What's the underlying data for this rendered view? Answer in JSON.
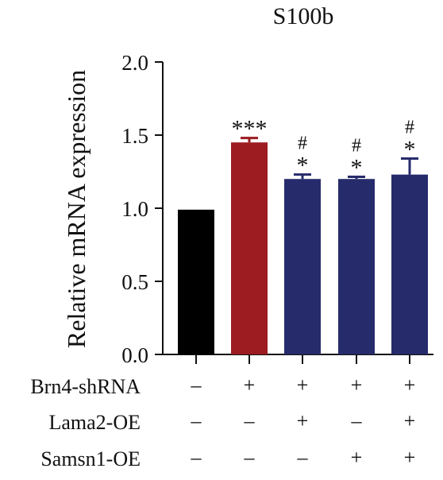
{
  "chart_data": {
    "type": "bar",
    "title": "S100b",
    "xlabel": "",
    "ylabel": "Relative mRNA expression",
    "ylim": [
      0,
      2.0
    ],
    "yticks": [
      "0.0",
      "0.5",
      "1.0",
      "1.5",
      "2.0"
    ],
    "grid": false,
    "categories": [
      "1",
      "2",
      "3",
      "4",
      "5"
    ],
    "values": [
      0.99,
      1.45,
      1.2,
      1.2,
      1.23
    ],
    "errors": [
      0.0,
      0.03,
      0.03,
      0.015,
      0.11
    ],
    "colors": [
      "#000000",
      "#9c1c21",
      "#262b6b",
      "#262b6b",
      "#262b6b"
    ],
    "significance": {
      "star": [
        "",
        "***",
        "*",
        "*",
        "*"
      ],
      "hash": [
        "",
        "",
        "#",
        "#",
        "#"
      ]
    },
    "conditions": [
      {
        "label": "Brn4-shRNA",
        "values": [
          "–",
          "+",
          "+",
          "+",
          "+"
        ]
      },
      {
        "label": "Lama2-OE",
        "values": [
          "–",
          "–",
          "+",
          "–",
          "+"
        ]
      },
      {
        "label": "Samsn1-OE",
        "values": [
          "–",
          "–",
          "–",
          "+",
          "+"
        ]
      }
    ]
  }
}
